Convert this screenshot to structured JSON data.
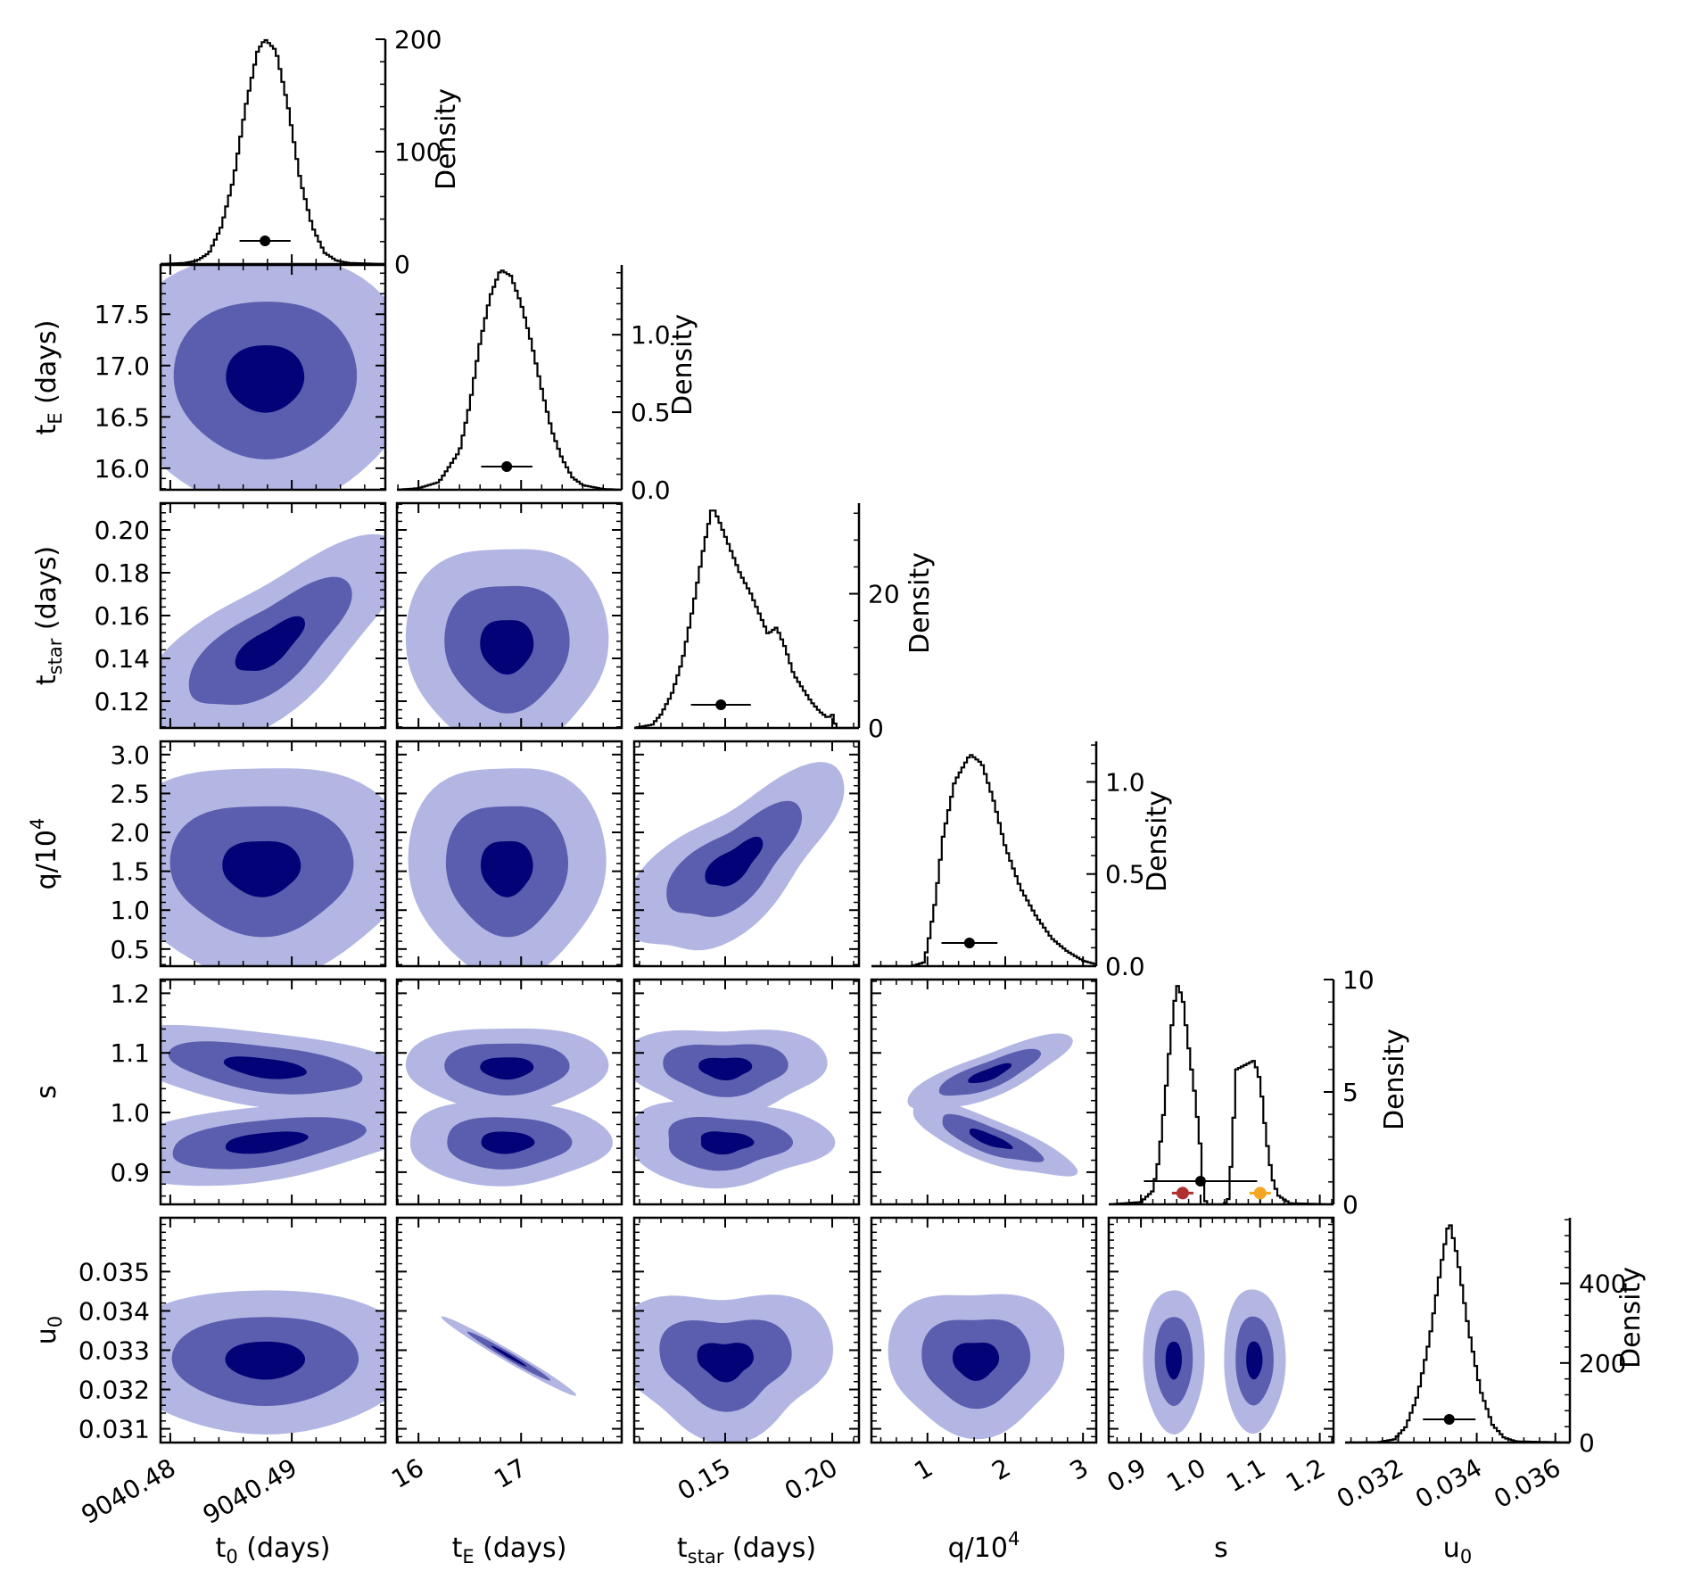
{
  "chart_data": {
    "type": "corner",
    "parameters": [
      {
        "key": "t0",
        "label": "t0 (days)",
        "label_main": "t",
        "label_sub": "0",
        "label_sup": "",
        "label_rest": " (days)",
        "range": [
          9040.4792,
          9040.4977
        ],
        "ticks": [
          9040.48,
          9040.49
        ],
        "tick_labels": [
          "9040.48",
          "9040.49"
        ],
        "mean": 9040.4878,
        "err": 0.0021
      },
      {
        "key": "tE",
        "label": "tE (days)",
        "label_main": "t",
        "label_sub": "E",
        "label_sup": "",
        "label_rest": " (days)",
        "range": [
          15.79,
          17.98
        ],
        "ticks": [
          16,
          17
        ],
        "tick_labels": [
          "16",
          "17"
        ],
        "axis_ticks": [
          16.0,
          16.5,
          17.0,
          17.5
        ],
        "axis_tick_labels": [
          "16.0",
          "16.5",
          "17.0",
          "17.5"
        ],
        "mean": 16.86,
        "err": 0.25
      },
      {
        "key": "tstar",
        "label": "tstar (days)",
        "label_main": "t",
        "label_sub": "star",
        "label_sup": "",
        "label_rest": " (days)",
        "range": [
          0.1075,
          0.2125
        ],
        "ticks": [
          0.15,
          0.2
        ],
        "tick_labels": [
          "0.15",
          "0.20"
        ],
        "axis_ticks": [
          0.12,
          0.14,
          0.16,
          0.18,
          0.2
        ],
        "axis_tick_labels": [
          "0.12",
          "0.14",
          "0.16",
          "0.18",
          "0.20"
        ],
        "mean": 0.148,
        "err": 0.014
      },
      {
        "key": "q",
        "label": "q/10^4",
        "label_main": "q/10",
        "label_sub": "",
        "label_sup": "4",
        "label_rest": "",
        "range": [
          0.28,
          3.17
        ],
        "ticks": [
          1,
          2,
          3
        ],
        "tick_labels": [
          "1",
          "2",
          "3"
        ],
        "axis_ticks": [
          0.5,
          1.0,
          1.5,
          2.0,
          2.5,
          3.0
        ],
        "axis_tick_labels": [
          "0.5",
          "1.0",
          "1.5",
          "2.0",
          "2.5",
          "3.0"
        ],
        "mean": 1.54,
        "err": 0.36
      },
      {
        "key": "s",
        "label": "s",
        "label_main": "s",
        "label_sub": "",
        "label_sup": "",
        "label_rest": "",
        "range": [
          0.846,
          1.223
        ],
        "ticks": [
          0.9,
          1.0,
          1.1,
          1.2
        ],
        "tick_labels": [
          "0.9",
          "1.0",
          "1.1",
          "1.2"
        ],
        "axis_ticks": [
          0.9,
          1.0,
          1.1,
          1.2
        ],
        "axis_tick_labels": [
          "0.9",
          "1.0",
          "1.1",
          "1.2"
        ],
        "mean": 1.0,
        "err": 0.095
      },
      {
        "key": "u0",
        "label": "u0",
        "label_main": "u",
        "label_sub": "0",
        "label_sup": "",
        "label_rest": "",
        "range": [
          0.03065,
          0.03637
        ],
        "ticks": [
          0.032,
          0.034,
          0.036
        ],
        "tick_labels": [
          "0.032",
          "0.034",
          "0.036"
        ],
        "axis_ticks": [
          0.031,
          0.032,
          0.033,
          0.034,
          0.035
        ],
        "axis_tick_labels": [
          "0.031",
          "0.032",
          "0.033",
          "0.034",
          "0.035"
        ],
        "mean": 0.0333,
        "err": 0.00067
      }
    ],
    "diagonal": [
      {
        "param": "t0",
        "ylabel": "Density",
        "ylim": [
          0,
          200
        ],
        "yticks": [
          0,
          100,
          200
        ],
        "ytick_labels": [
          "0",
          "100",
          "200"
        ],
        "peak": 200,
        "profile": [
          [
            9040.4792,
            0
          ],
          [
            9040.4812,
            1
          ],
          [
            9040.4822,
            3
          ],
          [
            9040.4832,
            10
          ],
          [
            9040.4842,
            33
          ],
          [
            9040.4852,
            75
          ],
          [
            9040.4862,
            140
          ],
          [
            9040.4872,
            190
          ],
          [
            9040.4878,
            200
          ],
          [
            9040.4887,
            190
          ],
          [
            9040.4897,
            140
          ],
          [
            9040.4907,
            75
          ],
          [
            9040.4917,
            33
          ],
          [
            9040.4927,
            10
          ],
          [
            9040.4937,
            3
          ],
          [
            9040.4947,
            1
          ],
          [
            9040.4977,
            0
          ]
        ]
      },
      {
        "param": "tE",
        "ylabel": "Density",
        "ylim": [
          0,
          1.45
        ],
        "yticks": [
          0.0,
          0.5,
          1.0
        ],
        "ytick_labels": [
          "0.0",
          "0.5",
          "1.0"
        ],
        "peak": 1.42,
        "profile": [
          [
            15.79,
            0
          ],
          [
            16.0,
            0.01
          ],
          [
            16.2,
            0.05
          ],
          [
            16.4,
            0.25
          ],
          [
            16.5,
            0.55
          ],
          [
            16.6,
            0.95
          ],
          [
            16.7,
            1.25
          ],
          [
            16.8,
            1.42
          ],
          [
            16.9,
            1.38
          ],
          [
            17.0,
            1.2
          ],
          [
            17.1,
            0.95
          ],
          [
            17.2,
            0.65
          ],
          [
            17.3,
            0.38
          ],
          [
            17.4,
            0.2
          ],
          [
            17.5,
            0.08
          ],
          [
            17.6,
            0.03
          ],
          [
            17.8,
            0.005
          ],
          [
            17.98,
            0
          ]
        ]
      },
      {
        "param": "tstar",
        "ylabel": "Density",
        "ylim": [
          0,
          33.5
        ],
        "yticks": [
          0,
          20
        ],
        "ytick_labels": [
          "0",
          "20"
        ],
        "peak": 33,
        "profile": [
          [
            0.1075,
            0
          ],
          [
            0.116,
            0.5
          ],
          [
            0.12,
            2
          ],
          [
            0.125,
            5
          ],
          [
            0.13,
            10
          ],
          [
            0.135,
            18
          ],
          [
            0.14,
            27
          ],
          [
            0.144,
            33
          ],
          [
            0.147,
            31
          ],
          [
            0.152,
            27
          ],
          [
            0.157,
            23
          ],
          [
            0.162,
            20
          ],
          [
            0.166,
            17
          ],
          [
            0.17,
            14
          ],
          [
            0.174,
            15
          ],
          [
            0.178,
            12
          ],
          [
            0.182,
            8
          ],
          [
            0.186,
            6
          ],
          [
            0.19,
            4
          ],
          [
            0.194,
            2.5
          ],
          [
            0.198,
            1.5
          ],
          [
            0.2,
            2
          ],
          [
            0.202,
            0
          ],
          [
            0.2125,
            0
          ]
        ]
      },
      {
        "param": "q",
        "ylabel": "Density",
        "ylim": [
          0,
          1.22
        ],
        "yticks": [
          0.0,
          0.5,
          1.0
        ],
        "ytick_labels": [
          "0.0",
          "0.5",
          "1.0"
        ],
        "peak": 1.15,
        "profile": [
          [
            0.28,
            0
          ],
          [
            0.8,
            0
          ],
          [
            0.95,
            0.02
          ],
          [
            1.0,
            0.1
          ],
          [
            1.1,
            0.35
          ],
          [
            1.2,
            0.7
          ],
          [
            1.35,
            1.0
          ],
          [
            1.55,
            1.15
          ],
          [
            1.7,
            1.1
          ],
          [
            1.85,
            0.9
          ],
          [
            2.0,
            0.65
          ],
          [
            2.2,
            0.42
          ],
          [
            2.4,
            0.27
          ],
          [
            2.6,
            0.15
          ],
          [
            2.8,
            0.08
          ],
          [
            3.0,
            0.03
          ],
          [
            3.17,
            0.01
          ]
        ]
      },
      {
        "param": "s",
        "ylabel": "Density",
        "ylim": [
          0,
          10
        ],
        "yticks": [
          0,
          5,
          10
        ],
        "ytick_labels": [
          "0",
          "5",
          "10"
        ],
        "peak": 9.8,
        "profile": [
          [
            0.846,
            0
          ],
          [
            0.9,
            0.1
          ],
          [
            0.92,
            0.6
          ],
          [
            0.93,
            2
          ],
          [
            0.94,
            4.5
          ],
          [
            0.95,
            7.5
          ],
          [
            0.96,
            9.8
          ],
          [
            0.97,
            9.2
          ],
          [
            0.98,
            7
          ],
          [
            0.99,
            5
          ],
          [
            1.0,
            2.5
          ],
          [
            1.005,
            0.5
          ],
          [
            1.01,
            0
          ],
          [
            1.04,
            0
          ],
          [
            1.048,
            0.3
          ],
          [
            1.055,
            3.5
          ],
          [
            1.06,
            6
          ],
          [
            1.075,
            6.2
          ],
          [
            1.09,
            6.4
          ],
          [
            1.1,
            5.5
          ],
          [
            1.11,
            3
          ],
          [
            1.12,
            1.2
          ],
          [
            1.13,
            0.4
          ],
          [
            1.15,
            0.05
          ],
          [
            1.223,
            0
          ]
        ]
      },
      {
        "param": "u0",
        "ylabel": "Density",
        "ylim": [
          0,
          565
        ],
        "yticks": [
          0,
          200,
          400
        ],
        "ytick_labels": [
          "0",
          "200",
          "400"
        ],
        "peak": 560,
        "profile": [
          [
            0.03065,
            0
          ],
          [
            0.0315,
            1
          ],
          [
            0.0319,
            8
          ],
          [
            0.0322,
            40
          ],
          [
            0.0325,
            120
          ],
          [
            0.0328,
            260
          ],
          [
            0.0331,
            450
          ],
          [
            0.0333,
            560
          ],
          [
            0.0335,
            470
          ],
          [
            0.0338,
            280
          ],
          [
            0.0341,
            130
          ],
          [
            0.0344,
            45
          ],
          [
            0.0347,
            12
          ],
          [
            0.035,
            3
          ],
          [
            0.03637,
            0
          ]
        ]
      }
    ],
    "s_panel_extra_points": [
      {
        "label": "",
        "color": "#b03030",
        "s": 0.97,
        "err": 0.018,
        "density": 0.5
      },
      {
        "label": "",
        "color": "#f5a623",
        "s": 1.1,
        "err": 0.018,
        "density": 0.5
      }
    ],
    "contour_levels": [
      {
        "level": "outer",
        "color": "#b3b6e3"
      },
      {
        "level": "middle",
        "color": "#5b5eae"
      },
      {
        "level": "inner",
        "color": "#030377"
      }
    ],
    "pairs": [
      {
        "x": "t0",
        "y": "tE",
        "blobs": [
          [
            9040.4878,
            16.88,
            0.0052,
            0.53,
            0,
            0.05
          ]
        ]
      },
      {
        "x": "t0",
        "y": "tstar",
        "blobs": [
          [
            9040.4882,
            0.146,
            0.0046,
            0.0205,
            0.72,
            0.18
          ]
        ]
      },
      {
        "x": "tE",
        "y": "tstar",
        "blobs": [
          [
            16.86,
            0.146,
            0.42,
            0.0205,
            0,
            0.1
          ]
        ]
      },
      {
        "x": "t0",
        "y": "q",
        "blobs": [
          [
            9040.4875,
            1.55,
            0.0052,
            0.58,
            0,
            0.1
          ]
        ]
      },
      {
        "x": "tE",
        "y": "q",
        "blobs": [
          [
            16.86,
            1.55,
            0.41,
            0.58,
            0,
            0.1
          ]
        ]
      },
      {
        "x": "tstar",
        "y": "q",
        "blobs": [
          [
            0.154,
            1.6,
            0.0215,
            0.5,
            0.7,
            0.25
          ]
        ]
      },
      {
        "x": "t0",
        "y": "s",
        "blobs": [
          [
            9040.4878,
            1.075,
            0.0055,
            0.03,
            -0.45,
            0.1
          ],
          [
            9040.4878,
            0.95,
            0.0055,
            0.03,
            0.45,
            0.1
          ]
        ]
      },
      {
        "x": "tE",
        "y": "s",
        "blobs": [
          [
            16.86,
            1.075,
            0.42,
            0.03,
            0,
            0.1
          ],
          [
            16.86,
            0.95,
            0.42,
            0.03,
            0,
            0.1
          ]
        ]
      },
      {
        "x": "tstar",
        "y": "s",
        "blobs": [
          [
            0.15,
            1.075,
            0.02,
            0.03,
            0,
            0.2
          ],
          [
            0.15,
            0.95,
            0.02,
            0.03,
            0,
            0.2
          ]
        ]
      },
      {
        "x": "q",
        "y": "s",
        "blobs": [
          [
            1.8,
            1.065,
            0.45,
            0.027,
            0.8,
            0.15
          ],
          [
            1.8,
            0.955,
            0.45,
            0.027,
            -0.8,
            0.15
          ]
        ]
      },
      {
        "x": "t0",
        "y": "u0",
        "blobs": [
          [
            9040.4878,
            0.03275,
            0.0053,
            0.00078,
            0,
            0.05
          ]
        ]
      },
      {
        "x": "tE",
        "y": "u0",
        "blobs": [
          [
            16.88,
            0.03285,
            0.28,
            0.00043,
            -0.985,
            0
          ]
        ]
      },
      {
        "x": "tstar",
        "y": "u0",
        "blobs": [
          [
            0.15,
            0.03275,
            0.021,
            0.00078,
            0,
            0.25
          ]
        ]
      },
      {
        "x": "q",
        "y": "u0",
        "blobs": [
          [
            1.62,
            0.03275,
            0.48,
            0.00078,
            0,
            0.15
          ]
        ]
      },
      {
        "x": "s",
        "y": "u0",
        "blobs": [
          [
            0.955,
            0.03275,
            0.022,
            0.00078,
            0,
            0.05
          ],
          [
            1.09,
            0.03275,
            0.022,
            0.00078,
            0,
            0.05
          ]
        ]
      }
    ]
  }
}
